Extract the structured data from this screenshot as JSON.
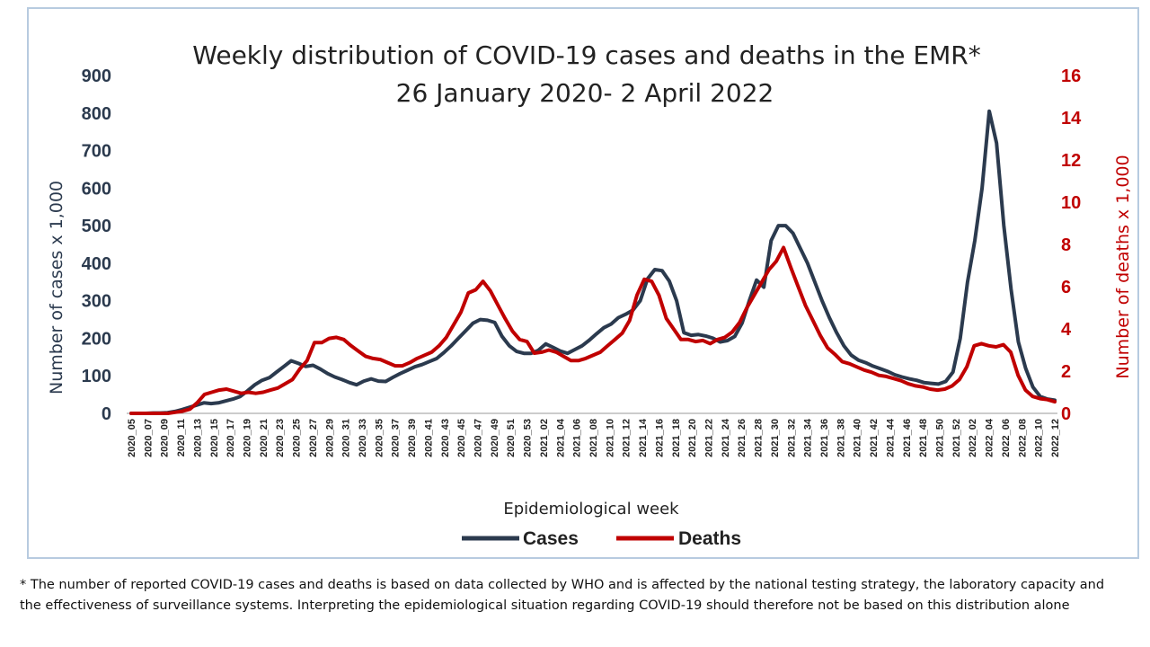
{
  "chart_data": {
    "type": "line",
    "title_line1": "Weekly distribution of COVID-19 cases and deaths in the EMR*",
    "title_line2": "26 January 2020- 2 April 2022",
    "xlabel": "Epidemiological week",
    "ylabel_left": "Number of cases x 1,000",
    "ylabel_right": "Number of deaths x 1,000",
    "ylim_left": [
      0,
      900
    ],
    "ylim_right": [
      0,
      16
    ],
    "yticks_left": [
      "0",
      "100",
      "200",
      "300",
      "400",
      "500",
      "600",
      "700",
      "800",
      "900"
    ],
    "yticks_right": [
      "0",
      "2",
      "4",
      "6",
      "8",
      "10",
      "12",
      "14",
      "16"
    ],
    "x_tick_labels": [
      "2020_05",
      "2020_07",
      "2020_09",
      "2020_11",
      "2020_13",
      "2020_15",
      "2020_17",
      "2020_19",
      "2020_21",
      "2020_23",
      "2020_25",
      "2020_27",
      "2020_29",
      "2020_31",
      "2020_33",
      "2020_35",
      "2020_37",
      "2020_39",
      "2020_41",
      "2020_43",
      "2020_45",
      "2020_47",
      "2020_49",
      "2020_51",
      "2020_53",
      "2021_02",
      "2021_04",
      "2021_06",
      "2021_08",
      "2021_10",
      "2021_12",
      "2021_14",
      "2021_16",
      "2021_18",
      "2021_20",
      "2021_22",
      "2021_24",
      "2021_26",
      "2021_28",
      "2021_30",
      "2021_32",
      "2021_34",
      "2021_36",
      "2021_38",
      "2021_40",
      "2021_42",
      "2021_44",
      "2021_46",
      "2021_48",
      "2021_50",
      "2021_52",
      "2022_02",
      "2022_04",
      "2022_06",
      "2022_08",
      "2022_10",
      "2022_12"
    ],
    "series": [
      {
        "name": "Cases",
        "axis": "left",
        "color": "#2b3a4e",
        "values": [
          0,
          0,
          0,
          1,
          1,
          2,
          5,
          10,
          16,
          22,
          28,
          26,
          28,
          33,
          38,
          45,
          60,
          76,
          88,
          95,
          110,
          125,
          140,
          133,
          125,
          128,
          118,
          106,
          97,
          90,
          82,
          76,
          86,
          92,
          86,
          85,
          96,
          106,
          115,
          124,
          130,
          138,
          146,
          162,
          180,
          200,
          220,
          240,
          250,
          248,
          242,
          205,
          180,
          165,
          160,
          160,
          168,
          185,
          176,
          166,
          160,
          170,
          180,
          195,
          212,
          228,
          238,
          255,
          264,
          275,
          300,
          358,
          383,
          380,
          352,
          300,
          215,
          208,
          210,
          206,
          200,
          190,
          194,
          205,
          240,
          300,
          355,
          336,
          460,
          500,
          500,
          480,
          440,
          400,
          350,
          300,
          255,
          215,
          180,
          155,
          142,
          135,
          126,
          119,
          112,
          103,
          97,
          92,
          88,
          82,
          80,
          78,
          85,
          110,
          200,
          350,
          460,
          600,
          805,
          720,
          500,
          330,
          190,
          120,
          70,
          45,
          38,
          35
        ]
      },
      {
        "name": "Deaths",
        "axis": "right",
        "color": "#c00000",
        "values": [
          0,
          0,
          0,
          0,
          0,
          0,
          0.05,
          0.1,
          0.2,
          0.5,
          0.9,
          1.0,
          1.1,
          1.15,
          1.05,
          0.95,
          1.0,
          0.95,
          1.0,
          1.1,
          1.2,
          1.4,
          1.6,
          2.1,
          2.5,
          3.35,
          3.35,
          3.55,
          3.6,
          3.5,
          3.2,
          2.95,
          2.7,
          2.6,
          2.55,
          2.4,
          2.25,
          2.25,
          2.4,
          2.6,
          2.75,
          2.9,
          3.2,
          3.6,
          4.2,
          4.8,
          5.7,
          5.85,
          6.25,
          5.8,
          5.15,
          4.5,
          3.9,
          3.5,
          3.4,
          2.85,
          2.9,
          3.0,
          2.9,
          2.7,
          2.5,
          2.5,
          2.6,
          2.75,
          2.9,
          3.2,
          3.5,
          3.8,
          4.4,
          5.6,
          6.35,
          6.25,
          5.6,
          4.5,
          4.0,
          3.5,
          3.5,
          3.4,
          3.45,
          3.3,
          3.5,
          3.6,
          3.85,
          4.3,
          5.0,
          5.6,
          6.2,
          6.8,
          7.2,
          7.85,
          6.9,
          6.0,
          5.1,
          4.4,
          3.7,
          3.1,
          2.8,
          2.45,
          2.35,
          2.2,
          2.05,
          1.95,
          1.8,
          1.75,
          1.65,
          1.55,
          1.4,
          1.3,
          1.25,
          1.15,
          1.1,
          1.15,
          1.3,
          1.6,
          2.2,
          3.2,
          3.3,
          3.2,
          3.15,
          3.25,
          2.9,
          1.8,
          1.1,
          0.8,
          0.7,
          0.65,
          0.55
        ]
      }
    ],
    "legend": {
      "placement": "bottom-center",
      "items": [
        "Cases",
        "Deaths"
      ]
    },
    "grid": false
  },
  "footnote": {
    "line1": "* The number of reported COVID-19 cases and deaths is based on data collected by WHO and is affected by the national testing strategy, the laboratory capacity and",
    "line2": "the effectiveness of surveillance systems. Interpreting the epidemiological situation regarding COVID-19 should therefore not be based on this distribution alone"
  }
}
